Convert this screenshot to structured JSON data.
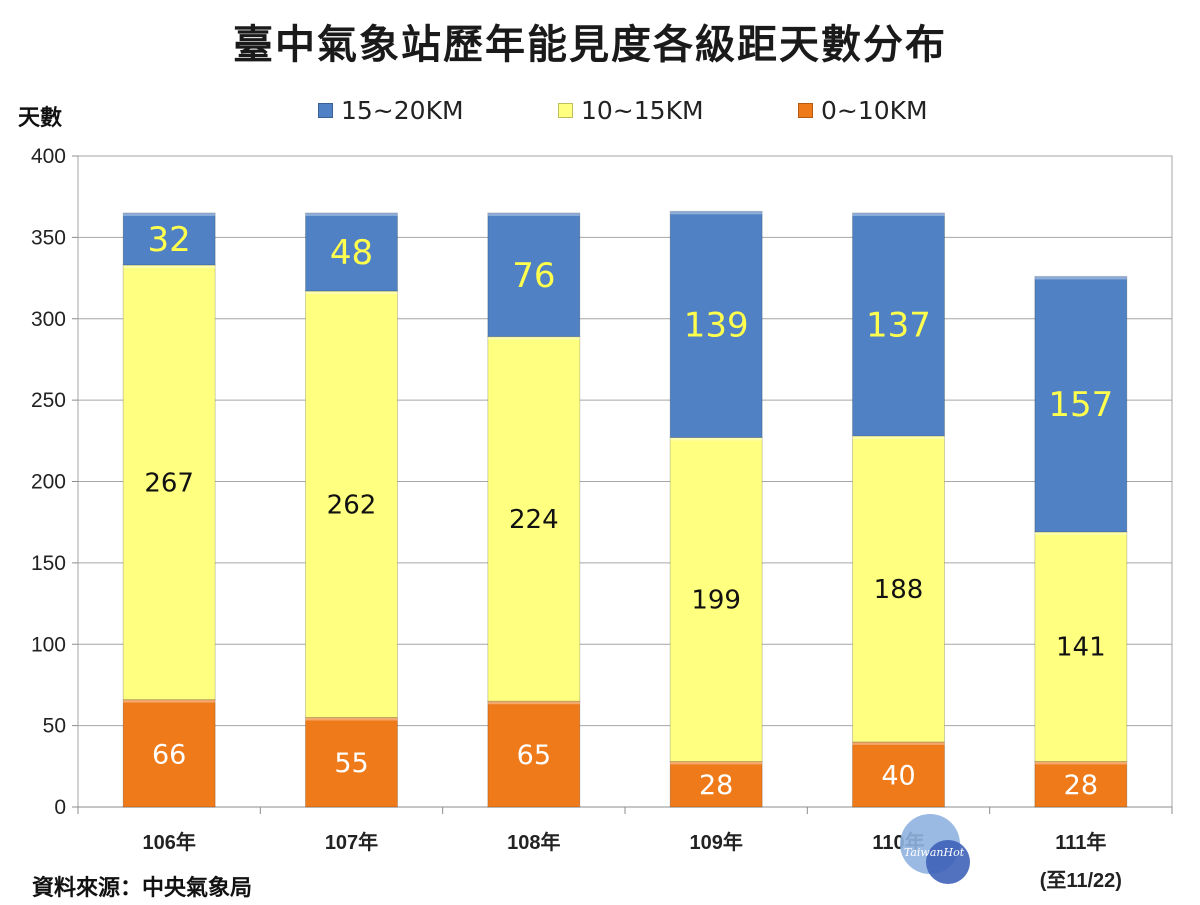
{
  "title": "臺中氣象站歷年能見度各級距天數分布",
  "source_note": "資料來源：中央氣象局",
  "watermark": "TaiwanHot",
  "colors": {
    "blue": "#4f81c4",
    "yellow": "#ffff80",
    "orange": "#ef7a1a"
  },
  "chart_data": {
    "type": "bar",
    "stacked": true,
    "title": "臺中氣象站歷年能見度各級距天數分布",
    "xlabel": "",
    "ylabel": "天數",
    "ylim": [
      0,
      400
    ],
    "yticks": [
      0,
      50,
      100,
      150,
      200,
      250,
      300,
      350,
      400
    ],
    "categories": [
      "106年",
      "107年",
      "108年",
      "109年",
      "110年",
      "111年"
    ],
    "category_notes": [
      "",
      "",
      "",
      "",
      "",
      "(至11/22)"
    ],
    "series": [
      {
        "name": "0~10KM",
        "color": "#ef7a1a",
        "values": [
          66,
          55,
          65,
          28,
          40,
          28
        ]
      },
      {
        "name": "10~15KM",
        "color": "#ffff80",
        "values": [
          267,
          262,
          224,
          199,
          188,
          141
        ]
      },
      {
        "name": "15~20KM",
        "color": "#4f81c4",
        "values": [
          32,
          48,
          76,
          139,
          137,
          157
        ]
      }
    ],
    "legend_order": [
      "15~20KM",
      "10~15KM",
      "0~10KM"
    ],
    "legend_position": "top",
    "grid": true
  }
}
